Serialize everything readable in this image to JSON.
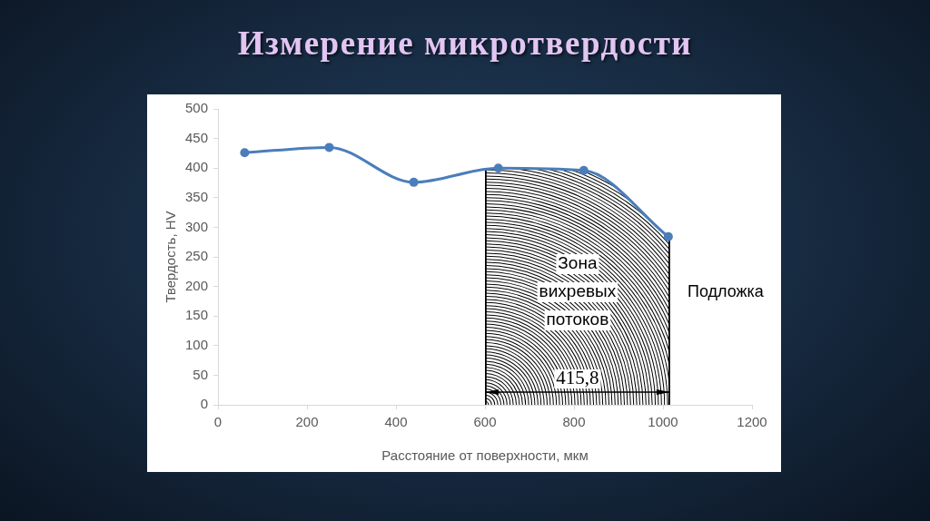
{
  "chart_data": {
    "type": "line",
    "title": "Измерение микротвердости",
    "xlabel": "Расстояние от поверхности, мкм",
    "ylabel": "Твердость, HV",
    "x": [
      60,
      250,
      440,
      630,
      822,
      1012
    ],
    "series": [
      {
        "color": "#4a7ebb",
        "values": [
          426,
          435,
          376,
          400,
          396,
          284
        ]
      }
    ],
    "xlim": [
      0,
      1200
    ],
    "xticks": [
      0,
      200,
      400,
      600,
      800,
      1000,
      1200
    ],
    "ylim": [
      0,
      500
    ],
    "yticks": [
      0,
      50,
      100,
      150,
      200,
      250,
      300,
      350,
      400,
      450,
      500
    ],
    "bands": [
      {
        "axis": "x",
        "from": 600,
        "to": 1016,
        "label": "Зона вихревых потоков",
        "color": "#000000"
      }
    ],
    "annotations": [
      "415,8",
      "Подложка"
    ],
    "grid": false,
    "legend": false,
    "marker": "circle",
    "line_style": "solid"
  }
}
